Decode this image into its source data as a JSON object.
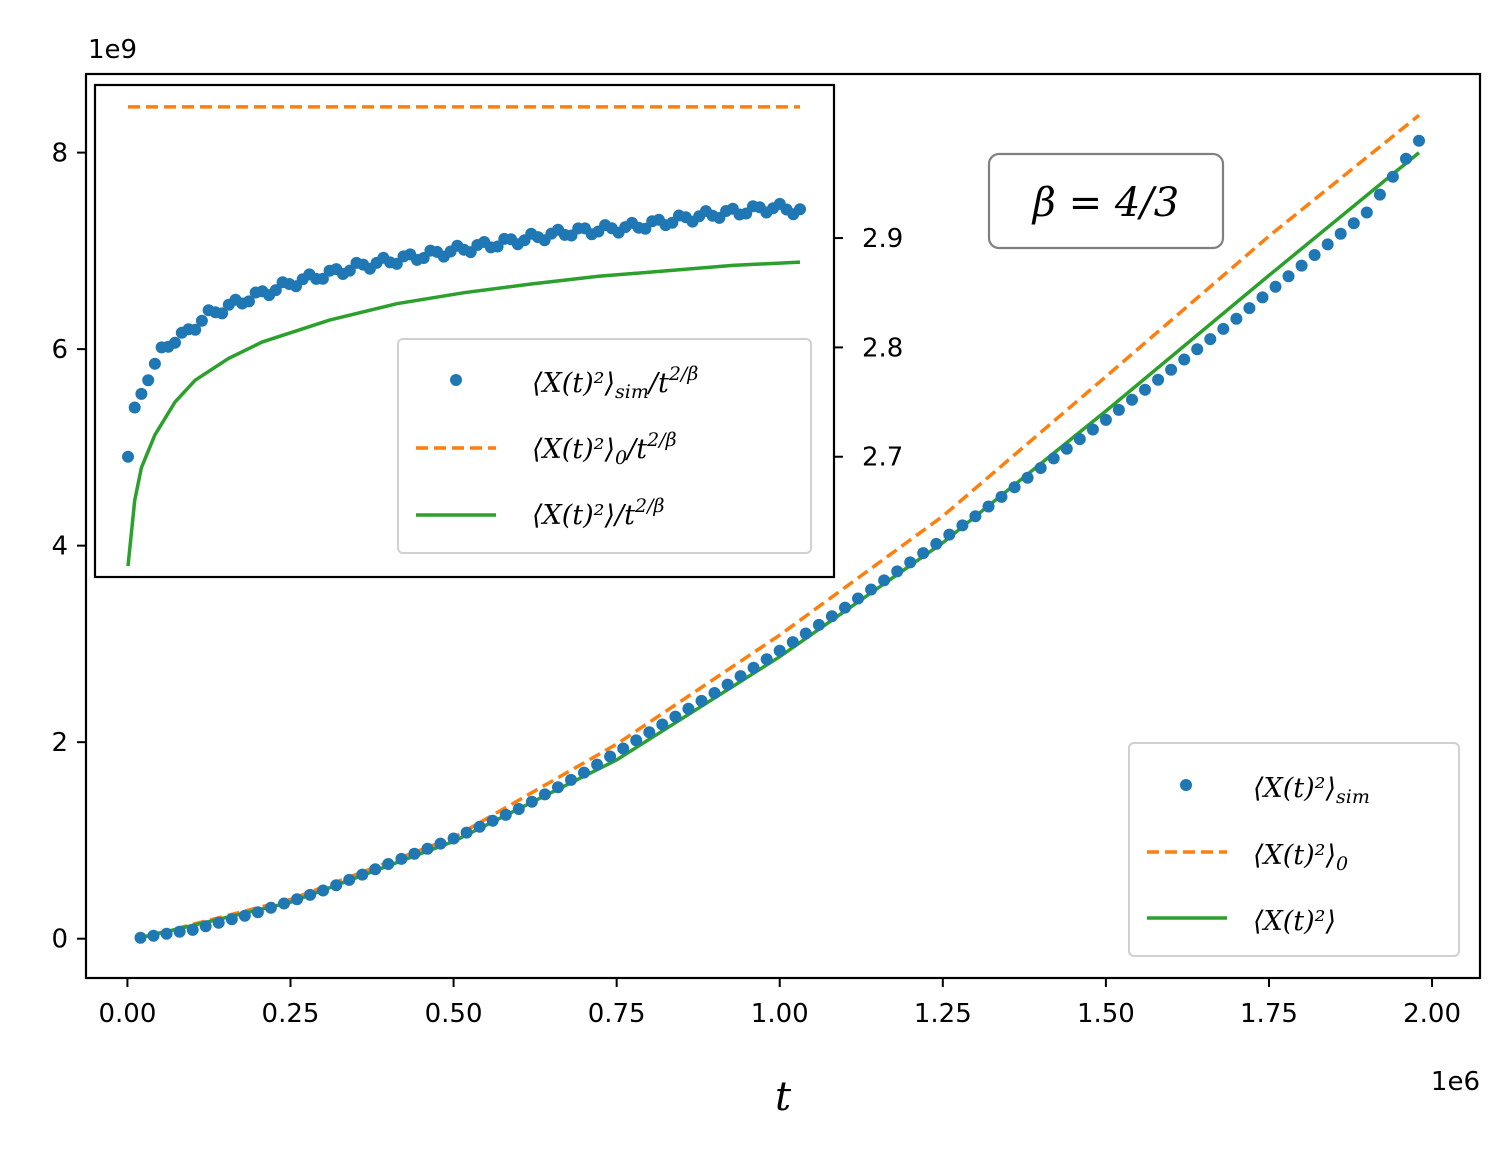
{
  "chart_data": [
    {
      "id": "main",
      "type": "line",
      "title": "",
      "xlabel": "t",
      "ylabel": "",
      "x_scale_label": "1e6",
      "y_scale_label": "1e9",
      "xlim": [
        -0.0635,
        2.0735
      ],
      "ylim": [
        -0.4,
        8.8
      ],
      "x_ticks": [
        0.0,
        0.25,
        0.5,
        0.75,
        1.0,
        1.25,
        1.5,
        1.75,
        2.0
      ],
      "x_tick_labels": [
        "0.00",
        "0.25",
        "0.50",
        "0.75",
        "1.00",
        "1.25",
        "1.50",
        "1.75",
        "2.00"
      ],
      "y_ticks": [
        0,
        2,
        4,
        6,
        8
      ],
      "y_tick_labels": [
        "0",
        "2",
        "4",
        "6",
        "8"
      ],
      "grid": false,
      "legend_position": "lower-right",
      "annotation": "β = 4/3",
      "series": [
        {
          "name": "⟨X(t)²⟩sim",
          "label_main": "⟨X(t)²⟩",
          "label_sub": "sim",
          "style": "markers",
          "color": "#1f77b4",
          "x": [
            0.02,
            0.1,
            0.2,
            0.3,
            0.4,
            0.5,
            0.6,
            0.7,
            0.8,
            0.9,
            1.0,
            1.1,
            1.2,
            1.3,
            1.4,
            1.5,
            1.6,
            1.7,
            1.8,
            1.9,
            1.98
          ],
          "y": [
            0.01,
            0.09,
            0.27,
            0.49,
            0.76,
            1.02,
            1.32,
            1.69,
            2.1,
            2.5,
            2.93,
            3.37,
            3.83,
            4.3,
            4.79,
            5.28,
            5.79,
            6.31,
            6.85,
            7.39,
            8.12
          ]
        },
        {
          "name": "⟨X(t)²⟩0",
          "label_main": "⟨X(t)²⟩",
          "label_sub": "0",
          "style": "dashed",
          "color": "#ff7f0e",
          "x": [
            0.02,
            0.25,
            0.5,
            0.75,
            1.0,
            1.25,
            1.5,
            1.75,
            1.98
          ],
          "y": [
            0.01,
            0.4,
            1.03,
            1.98,
            3.09,
            4.3,
            5.72,
            7.15,
            8.38
          ]
        },
        {
          "name": "⟨X(t)²⟩",
          "label_main": "⟨X(t)²⟩",
          "label_sub": "",
          "style": "solid",
          "color": "#2ca02c",
          "x": [
            0.02,
            0.25,
            0.5,
            0.75,
            1.0,
            1.25,
            1.5,
            1.75,
            1.98
          ],
          "y": [
            0.01,
            0.37,
            0.99,
            1.82,
            2.87,
            4.03,
            5.37,
            6.75,
            8.0
          ]
        }
      ]
    },
    {
      "id": "inset",
      "type": "line",
      "title": "",
      "xlabel": "",
      "ylabel": "",
      "xlim": [
        0,
        1
      ],
      "ylim": [
        2.59,
        3.04
      ],
      "y_ticks": [
        2.7,
        2.8,
        2.9
      ],
      "y_tick_labels": [
        "2.7",
        "2.8",
        "2.9"
      ],
      "y_axis_side": "right",
      "grid": false,
      "legend_position": "lower-right",
      "series": [
        {
          "name": "⟨X(t)²⟩sim/t^(2/β)",
          "label_main": "⟨X(t)²⟩",
          "label_sub": "sim",
          "label_tail": "/t",
          "label_sup": "2/β",
          "style": "markers",
          "color": "#1f77b4",
          "x": [
            0.0,
            0.01,
            0.03,
            0.05,
            0.08,
            0.12,
            0.18,
            0.25,
            0.35,
            0.45,
            0.55,
            0.65,
            0.75,
            0.85,
            0.92,
            0.96,
            1.0
          ],
          "y": [
            2.7,
            2.745,
            2.77,
            2.8,
            2.81,
            2.83,
            2.845,
            2.86,
            2.875,
            2.885,
            2.895,
            2.905,
            2.91,
            2.92,
            2.925,
            2.928,
            2.925
          ]
        },
        {
          "name": "⟨X(t)²⟩0/t^(2/β)",
          "label_main": "⟨X(t)²⟩",
          "label_sub": "0",
          "label_tail": "/t",
          "label_sup": "2/β",
          "style": "dashed",
          "color": "#ff7f0e",
          "x": [
            0.0,
            1.0
          ],
          "y": [
            3.02,
            3.02
          ]
        },
        {
          "name": "⟨X(t)²⟩/t^(2/β)",
          "label_main": "⟨X(t)²⟩",
          "label_sub": "",
          "label_tail": "/t",
          "label_sup": "2/β",
          "style": "solid",
          "color": "#2ca02c",
          "x": [
            0.0,
            0.01,
            0.02,
            0.04,
            0.07,
            0.1,
            0.15,
            0.2,
            0.3,
            0.4,
            0.5,
            0.6,
            0.7,
            0.8,
            0.9,
            1.0
          ],
          "y": [
            2.6,
            2.66,
            2.69,
            2.72,
            2.75,
            2.77,
            2.79,
            2.805,
            2.825,
            2.84,
            2.85,
            2.858,
            2.865,
            2.87,
            2.875,
            2.878
          ]
        }
      ]
    }
  ]
}
